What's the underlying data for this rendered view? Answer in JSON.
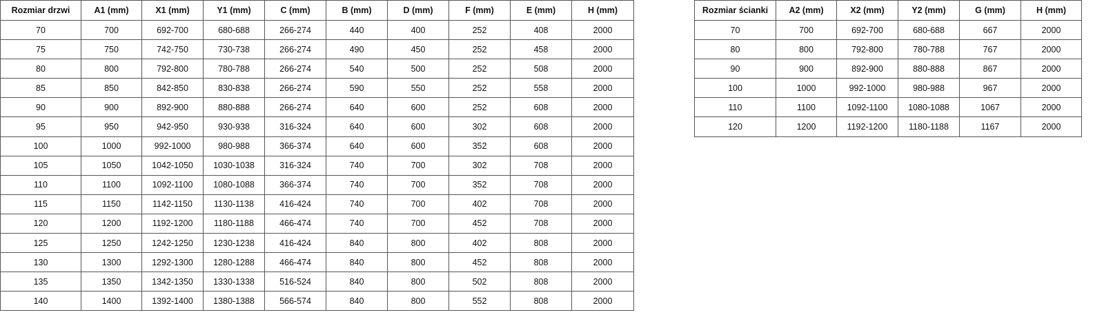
{
  "doors_table": {
    "headers": [
      "Rozmiar drzwi",
      "A1 (mm)",
      "X1 (mm)",
      "Y1 (mm)",
      "C (mm)",
      "B (mm)",
      "D (mm)",
      "F (mm)",
      "E (mm)",
      "H (mm)"
    ],
    "rows": [
      [
        "70",
        "700",
        "692-700",
        "680-688",
        "266-274",
        "440",
        "400",
        "252",
        "408",
        "2000"
      ],
      [
        "75",
        "750",
        "742-750",
        "730-738",
        "266-274",
        "490",
        "450",
        "252",
        "458",
        "2000"
      ],
      [
        "80",
        "800",
        "792-800",
        "780-788",
        "266-274",
        "540",
        "500",
        "252",
        "508",
        "2000"
      ],
      [
        "85",
        "850",
        "842-850",
        "830-838",
        "266-274",
        "590",
        "550",
        "252",
        "558",
        "2000"
      ],
      [
        "90",
        "900",
        "892-900",
        "880-888",
        "266-274",
        "640",
        "600",
        "252",
        "608",
        "2000"
      ],
      [
        "95",
        "950",
        "942-950",
        "930-938",
        "316-324",
        "640",
        "600",
        "302",
        "608",
        "2000"
      ],
      [
        "100",
        "1000",
        "992-1000",
        "980-988",
        "366-374",
        "640",
        "600",
        "352",
        "608",
        "2000"
      ],
      [
        "105",
        "1050",
        "1042-1050",
        "1030-1038",
        "316-324",
        "740",
        "700",
        "302",
        "708",
        "2000"
      ],
      [
        "110",
        "1100",
        "1092-1100",
        "1080-1088",
        "366-374",
        "740",
        "700",
        "352",
        "708",
        "2000"
      ],
      [
        "115",
        "1150",
        "1142-1150",
        "1130-1138",
        "416-424",
        "740",
        "700",
        "402",
        "708",
        "2000"
      ],
      [
        "120",
        "1200",
        "1192-1200",
        "1180-1188",
        "466-474",
        "740",
        "700",
        "452",
        "708",
        "2000"
      ],
      [
        "125",
        "1250",
        "1242-1250",
        "1230-1238",
        "416-424",
        "840",
        "800",
        "402",
        "808",
        "2000"
      ],
      [
        "130",
        "1300",
        "1292-1300",
        "1280-1288",
        "466-474",
        "840",
        "800",
        "452",
        "808",
        "2000"
      ],
      [
        "135",
        "1350",
        "1342-1350",
        "1330-1338",
        "516-524",
        "840",
        "800",
        "502",
        "808",
        "2000"
      ],
      [
        "140",
        "1400",
        "1392-1400",
        "1380-1388",
        "566-574",
        "840",
        "800",
        "552",
        "808",
        "2000"
      ]
    ]
  },
  "walls_table": {
    "headers": [
      "Rozmiar ścianki",
      "A2 (mm)",
      "X2 (mm)",
      "Y2 (mm)",
      "G (mm)",
      "H (mm)"
    ],
    "rows": [
      [
        "70",
        "700",
        "692-700",
        "680-688",
        "667",
        "2000"
      ],
      [
        "80",
        "800",
        "792-800",
        "780-788",
        "767",
        "2000"
      ],
      [
        "90",
        "900",
        "892-900",
        "880-888",
        "867",
        "2000"
      ],
      [
        "100",
        "1000",
        "992-1000",
        "980-988",
        "967",
        "2000"
      ],
      [
        "110",
        "1100",
        "1092-1100",
        "1080-1088",
        "1067",
        "2000"
      ],
      [
        "120",
        "1200",
        "1192-1200",
        "1180-1188",
        "1167",
        "2000"
      ]
    ]
  }
}
